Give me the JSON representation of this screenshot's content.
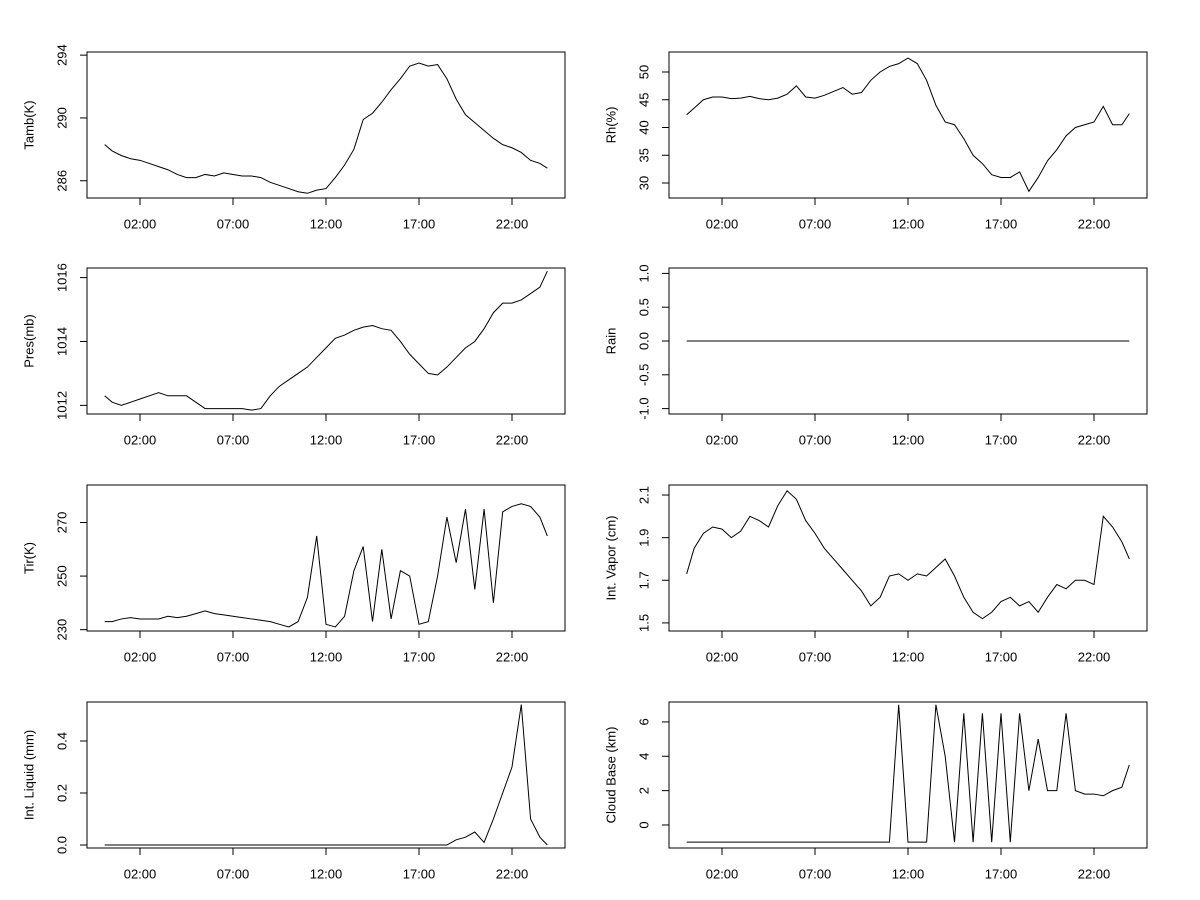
{
  "chart_data": [
    {
      "type": "line",
      "ylabel": "Tamb(K)",
      "x": [
        0.1,
        0.5,
        1,
        1.5,
        2,
        2.5,
        3,
        3.5,
        4,
        4.5,
        5,
        5.5,
        6,
        6.5,
        7,
        7.5,
        8,
        8.5,
        9,
        9.5,
        10,
        10.5,
        11,
        11.5,
        12,
        12.5,
        13,
        13.5,
        14,
        14.5,
        15,
        15.5,
        16,
        16.5,
        17,
        17.5,
        18,
        18.5,
        19,
        19.5,
        20,
        20.5,
        21,
        21.5,
        22,
        22.5,
        23,
        23.5,
        23.9
      ],
      "values": [
        288.3,
        287.9,
        287.6,
        287.4,
        287.3,
        287.1,
        286.9,
        286.7,
        286.4,
        286.2,
        286.2,
        286.4,
        286.3,
        286.5,
        286.4,
        286.3,
        286.3,
        286.2,
        285.9,
        285.7,
        285.5,
        285.3,
        285.2,
        285.4,
        285.5,
        286.2,
        287,
        288,
        289.9,
        290.3,
        291,
        291.8,
        292.5,
        293.3,
        293.5,
        293.3,
        293.4,
        292.5,
        291.2,
        290.2,
        289.7,
        289.2,
        288.7,
        288.3,
        288.1,
        287.8,
        287.3,
        287.1,
        286.8
      ],
      "color": "#000000",
      "xlim": [
        -0.85,
        24.85
      ],
      "xticks": [
        {
          "value": 2,
          "label": "02:00"
        },
        {
          "value": 7,
          "label": "07:00"
        },
        {
          "value": 12,
          "label": "12:00"
        },
        {
          "value": 17,
          "label": "17:00"
        },
        {
          "value": 22,
          "label": "22:00"
        }
      ],
      "ylim": [
        284.9,
        294.2
      ],
      "yticks": [
        286,
        290,
        294
      ]
    },
    {
      "type": "line",
      "ylabel": "Rh(%)",
      "x": [
        0.1,
        0.5,
        1,
        1.5,
        2,
        2.5,
        3,
        3.5,
        4,
        4.5,
        5,
        5.5,
        6,
        6.5,
        7,
        7.5,
        8,
        8.5,
        9,
        9.5,
        10,
        10.5,
        11,
        11.5,
        12,
        12.5,
        13,
        13.5,
        14,
        14.5,
        15,
        15.5,
        16,
        16.5,
        17,
        17.5,
        18,
        18.5,
        19,
        19.5,
        20,
        20.5,
        21,
        21.5,
        22,
        22.5,
        23,
        23.5,
        23.9
      ],
      "values": [
        42.3,
        43.5,
        45,
        45.5,
        45.5,
        45.2,
        45.3,
        45.6,
        45.2,
        45,
        45.3,
        46,
        47.5,
        45.5,
        45.3,
        45.8,
        46.5,
        47.2,
        46,
        46.3,
        48.5,
        50,
        51,
        51.5,
        52.5,
        51.5,
        48.5,
        44,
        41,
        40.5,
        38,
        35,
        33.5,
        31.5,
        31,
        31,
        32,
        28.5,
        31,
        34,
        36,
        38.5,
        40,
        40.5,
        41,
        43.8,
        40.5,
        40.5,
        42.5
      ],
      "color": "#000000",
      "xlim": [
        -0.85,
        24.85
      ],
      "xticks": [
        {
          "value": 2,
          "label": "02:00"
        },
        {
          "value": 7,
          "label": "07:00"
        },
        {
          "value": 12,
          "label": "12:00"
        },
        {
          "value": 17,
          "label": "17:00"
        },
        {
          "value": 22,
          "label": "22:00"
        }
      ],
      "ylim": [
        27.3,
        53.6
      ],
      "yticks": [
        30,
        35,
        40,
        45,
        50
      ]
    },
    {
      "type": "line",
      "ylabel": "Pres(mb)",
      "x": [
        0.1,
        0.5,
        1,
        1.5,
        2,
        2.5,
        3,
        3.5,
        4,
        4.5,
        5,
        5.5,
        6,
        6.5,
        7,
        7.5,
        8,
        8.5,
        9,
        9.5,
        10,
        10.5,
        11,
        11.5,
        12,
        12.5,
        13,
        13.5,
        14,
        14.5,
        15,
        15.5,
        16,
        16.5,
        17,
        17.5,
        18,
        18.5,
        19,
        19.5,
        20,
        20.5,
        21,
        21.5,
        22,
        22.5,
        23,
        23.5,
        23.9
      ],
      "values": [
        1012.3,
        1012.1,
        1012,
        1012.1,
        1012.2,
        1012.3,
        1012.4,
        1012.3,
        1012.3,
        1012.3,
        1012.1,
        1011.9,
        1011.9,
        1011.9,
        1011.9,
        1011.9,
        1011.85,
        1011.9,
        1012.3,
        1012.6,
        1012.8,
        1013,
        1013.2,
        1013.5,
        1013.8,
        1014.1,
        1014.2,
        1014.35,
        1014.45,
        1014.5,
        1014.4,
        1014.35,
        1014,
        1013.6,
        1013.3,
        1013,
        1012.95,
        1013.2,
        1013.5,
        1013.8,
        1014,
        1014.4,
        1014.9,
        1015.2,
        1015.2,
        1015.3,
        1015.5,
        1015.7,
        1016.2
      ],
      "color": "#000000",
      "xlim": [
        -0.85,
        24.85
      ],
      "xticks": [
        {
          "value": 2,
          "label": "02:00"
        },
        {
          "value": 7,
          "label": "07:00"
        },
        {
          "value": 12,
          "label": "12:00"
        },
        {
          "value": 17,
          "label": "17:00"
        },
        {
          "value": 22,
          "label": "22:00"
        }
      ],
      "ylim": [
        1011.73,
        1016.3
      ],
      "yticks": [
        1012,
        1014,
        1016
      ]
    },
    {
      "type": "line",
      "ylabel": "Rain",
      "x": [
        0.1,
        0.5,
        1,
        1.5,
        2,
        2.5,
        3,
        3.5,
        4,
        4.5,
        5,
        5.5,
        6,
        6.5,
        7,
        7.5,
        8,
        8.5,
        9,
        9.5,
        10,
        10.5,
        11,
        11.5,
        12,
        12.5,
        13,
        13.5,
        14,
        14.5,
        15,
        15.5,
        16,
        16.5,
        17,
        17.5,
        18,
        18.5,
        19,
        19.5,
        20,
        20.5,
        21,
        21.5,
        22,
        22.5,
        23,
        23.5,
        23.9
      ],
      "values": [
        0,
        0,
        0,
        0,
        0,
        0,
        0,
        0,
        0,
        0,
        0,
        0,
        0,
        0,
        0,
        0,
        0,
        0,
        0,
        0,
        0,
        0,
        0,
        0,
        0,
        0,
        0,
        0,
        0,
        0,
        0,
        0,
        0,
        0,
        0,
        0,
        0,
        0,
        0,
        0,
        0,
        0,
        0,
        0,
        0,
        0,
        0,
        0,
        0
      ],
      "color": "#000000",
      "xlim": [
        -0.85,
        24.85
      ],
      "xticks": [
        {
          "value": 2,
          "label": "02:00"
        },
        {
          "value": 7,
          "label": "07:00"
        },
        {
          "value": 12,
          "label": "12:00"
        },
        {
          "value": 17,
          "label": "17:00"
        },
        {
          "value": 22,
          "label": "22:00"
        }
      ],
      "ylim": [
        -1.08,
        1.08
      ],
      "yticks": [
        {
          "value": -1,
          "label": "-1.0"
        },
        {
          "value": -0.5,
          "label": "-0.5"
        },
        {
          "value": 0,
          "label": "0.0"
        },
        {
          "value": 0.5,
          "label": "0.5"
        },
        {
          "value": 1,
          "label": "1.0"
        }
      ]
    },
    {
      "type": "line",
      "ylabel": "Tir(K)",
      "x": [
        0.1,
        0.5,
        1,
        1.5,
        2,
        2.5,
        3,
        3.5,
        4,
        4.5,
        5,
        5.5,
        6,
        6.5,
        7,
        7.5,
        8,
        8.5,
        9,
        9.5,
        10,
        10.5,
        11,
        11.5,
        12,
        12.5,
        13,
        13.5,
        14,
        14.5,
        15,
        15.5,
        16,
        16.5,
        17,
        17.5,
        18,
        18.5,
        19,
        19.5,
        20,
        20.5,
        21,
        21.5,
        22,
        22.5,
        23,
        23.5,
        23.9
      ],
      "values": [
        233,
        233,
        234,
        234.5,
        234,
        234,
        234,
        235,
        234.5,
        235,
        236,
        237,
        236,
        235.5,
        235,
        234.5,
        234,
        233.5,
        233,
        232,
        231,
        233,
        242,
        265,
        232,
        231,
        235,
        252,
        261,
        233,
        260,
        234,
        252,
        250,
        232,
        233,
        250,
        272,
        255,
        275,
        245,
        275,
        240,
        274,
        276,
        277,
        276,
        272,
        265
      ],
      "color": "#000000",
      "xlim": [
        -0.85,
        24.85
      ],
      "xticks": [
        {
          "value": 2,
          "label": "02:00"
        },
        {
          "value": 7,
          "label": "07:00"
        },
        {
          "value": 12,
          "label": "12:00"
        },
        {
          "value": 17,
          "label": "17:00"
        },
        {
          "value": 22,
          "label": "22:00"
        }
      ],
      "ylim": [
        229.5,
        284
      ],
      "yticks": [
        230,
        250,
        270
      ]
    },
    {
      "type": "line",
      "ylabel": "Int. Vapor (cm)",
      "x": [
        0.1,
        0.5,
        1,
        1.5,
        2,
        2.5,
        3,
        3.5,
        4,
        4.5,
        5,
        5.5,
        6,
        6.5,
        7,
        7.5,
        8,
        8.5,
        9,
        9.5,
        10,
        10.5,
        11,
        11.5,
        12,
        12.5,
        13,
        13.5,
        14,
        14.5,
        15,
        15.5,
        16,
        16.5,
        17,
        17.5,
        18,
        18.5,
        19,
        19.5,
        20,
        20.5,
        21,
        21.5,
        22,
        22.5,
        23,
        23.5,
        23.9
      ],
      "values": [
        1.73,
        1.85,
        1.92,
        1.95,
        1.94,
        1.9,
        1.93,
        2,
        1.98,
        1.95,
        2.05,
        2.12,
        2.08,
        1.98,
        1.92,
        1.85,
        1.8,
        1.75,
        1.7,
        1.65,
        1.58,
        1.62,
        1.72,
        1.73,
        1.7,
        1.73,
        1.72,
        1.76,
        1.8,
        1.72,
        1.62,
        1.55,
        1.52,
        1.55,
        1.6,
        1.62,
        1.58,
        1.6,
        1.55,
        1.62,
        1.68,
        1.66,
        1.7,
        1.7,
        1.68,
        2,
        1.95,
        1.88,
        1.8
      ],
      "color": "#000000",
      "xlim": [
        -0.85,
        24.85
      ],
      "xticks": [
        {
          "value": 2,
          "label": "02:00"
        },
        {
          "value": 7,
          "label": "07:00"
        },
        {
          "value": 12,
          "label": "12:00"
        },
        {
          "value": 17,
          "label": "17:00"
        },
        {
          "value": 22,
          "label": "22:00"
        }
      ],
      "ylim": [
        1.462,
        2.147
      ],
      "yticks": [
        1.5,
        1.7,
        1.9,
        2.1
      ]
    },
    {
      "type": "line",
      "ylabel": "Int. Liquid (mm)",
      "x": [
        0.1,
        0.5,
        1,
        1.5,
        2,
        2.5,
        3,
        3.5,
        4,
        4.5,
        5,
        5.5,
        6,
        6.5,
        7,
        7.5,
        8,
        8.5,
        9,
        9.5,
        10,
        10.5,
        11,
        11.5,
        12,
        12.5,
        13,
        13.5,
        14,
        14.5,
        15,
        15.5,
        16,
        16.5,
        17,
        17.5,
        18,
        18.5,
        19,
        19.5,
        20,
        20.5,
        21,
        21.5,
        22,
        22.5,
        23,
        23.5,
        23.9
      ],
      "values": [
        0,
        0,
        0,
        0,
        0,
        0,
        0,
        0,
        0,
        0,
        0,
        0,
        0,
        0,
        0,
        0,
        0,
        0,
        0,
        0,
        0,
        0,
        0,
        0,
        0,
        0,
        0,
        0,
        0,
        0,
        0,
        0,
        0,
        0,
        0,
        0,
        0,
        0,
        0.02,
        0.03,
        0.05,
        0.01,
        0.1,
        0.2,
        0.3,
        0.54,
        0.1,
        0.03,
        0
      ],
      "color": "#000000",
      "xlim": [
        -0.85,
        24.85
      ],
      "xticks": [
        {
          "value": 2,
          "label": "02:00"
        },
        {
          "value": 7,
          "label": "07:00"
        },
        {
          "value": 12,
          "label": "12:00"
        },
        {
          "value": 17,
          "label": "17:00"
        },
        {
          "value": 22,
          "label": "22:00"
        }
      ],
      "ylim": [
        -0.0115,
        0.55
      ],
      "yticks": [
        {
          "value": 0,
          "label": "0.0"
        },
        0.2,
        0.4
      ]
    },
    {
      "type": "line",
      "ylabel": "Cloud Base (km)",
      "x": [
        0.1,
        0.5,
        1,
        1.5,
        2,
        2.5,
        3,
        3.5,
        4,
        4.5,
        5,
        5.5,
        6,
        6.5,
        7,
        7.5,
        8,
        8.5,
        9,
        9.5,
        10,
        10.5,
        11,
        11.5,
        12,
        12.5,
        13,
        13.5,
        14,
        14.5,
        15,
        15.5,
        16,
        16.5,
        17,
        17.5,
        18,
        18.5,
        19,
        19.5,
        20,
        20.5,
        21,
        21.5,
        22,
        22.5,
        23,
        23.5,
        23.9
      ],
      "values": [
        -1,
        -1,
        -1,
        -1,
        -1,
        -1,
        -1,
        -1,
        -1,
        -1,
        -1,
        -1,
        -1,
        -1,
        -1,
        -1,
        -1,
        -1,
        -1,
        -1,
        -1,
        -1,
        -1,
        7,
        -1,
        -1,
        -1,
        7,
        4,
        -1,
        6.5,
        -1,
        6.5,
        -1,
        6.5,
        -1,
        6.5,
        2,
        5,
        2,
        2,
        6.5,
        2,
        1.8,
        1.8,
        1.7,
        2,
        2.2,
        3.5
      ],
      "color": "#000000",
      "xlim": [
        -0.85,
        24.85
      ],
      "xticks": [
        {
          "value": 2,
          "label": "02:00"
        },
        {
          "value": 7,
          "label": "07:00"
        },
        {
          "value": 12,
          "label": "12:00"
        },
        {
          "value": 17,
          "label": "17:00"
        },
        {
          "value": 22,
          "label": "22:00"
        }
      ],
      "ylim": [
        -1.34,
        7.16
      ],
      "yticks": [
        0,
        2,
        4,
        6
      ]
    }
  ]
}
